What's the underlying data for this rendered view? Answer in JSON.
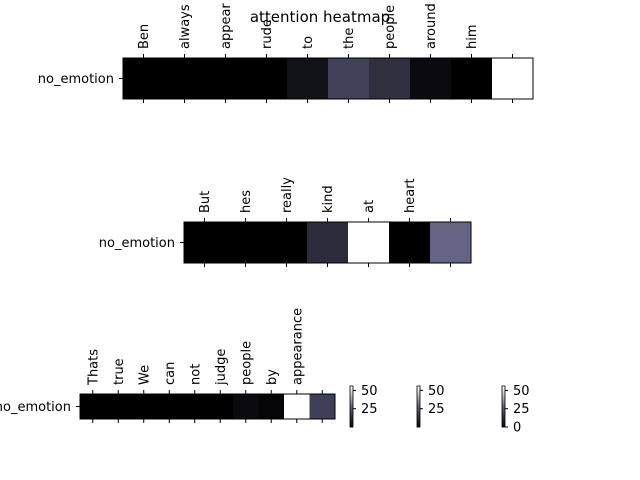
{
  "title": "attention heatmap",
  "chart_data": [
    {
      "type": "heatmap",
      "row_label": "no_emotion",
      "tokens": [
        "Ben",
        "always",
        "appear",
        "rude",
        "to",
        "the",
        "people",
        "around",
        "him",
        ""
      ],
      "values": [
        0,
        0,
        0,
        0,
        10,
        36,
        26,
        6,
        0,
        100
      ]
    },
    {
      "type": "heatmap",
      "row_label": "no_emotion",
      "tokens": [
        "But",
        "hes",
        "really",
        "kind",
        "at",
        "heart",
        ""
      ],
      "values": [
        0,
        0,
        0,
        24,
        100,
        0,
        53
      ]
    },
    {
      "type": "heatmap",
      "row_label": "no_emotion",
      "tokens": [
        "Thats",
        "true",
        "We",
        "can",
        "not",
        "judge",
        "people",
        "by",
        "appearance",
        ""
      ],
      "values": [
        0,
        0,
        0,
        0,
        0,
        0,
        6,
        3,
        100,
        35
      ]
    }
  ],
  "colorbars": [
    {
      "ticks": [
        "25",
        "50"
      ]
    },
    {
      "ticks": [
        "25",
        "50"
      ]
    },
    {
      "ticks": [
        "0",
        "25",
        "50"
      ]
    }
  ],
  "colormap": {
    "low": "#000000",
    "mid": "#5a5a7c",
    "high": "#ffffff"
  }
}
